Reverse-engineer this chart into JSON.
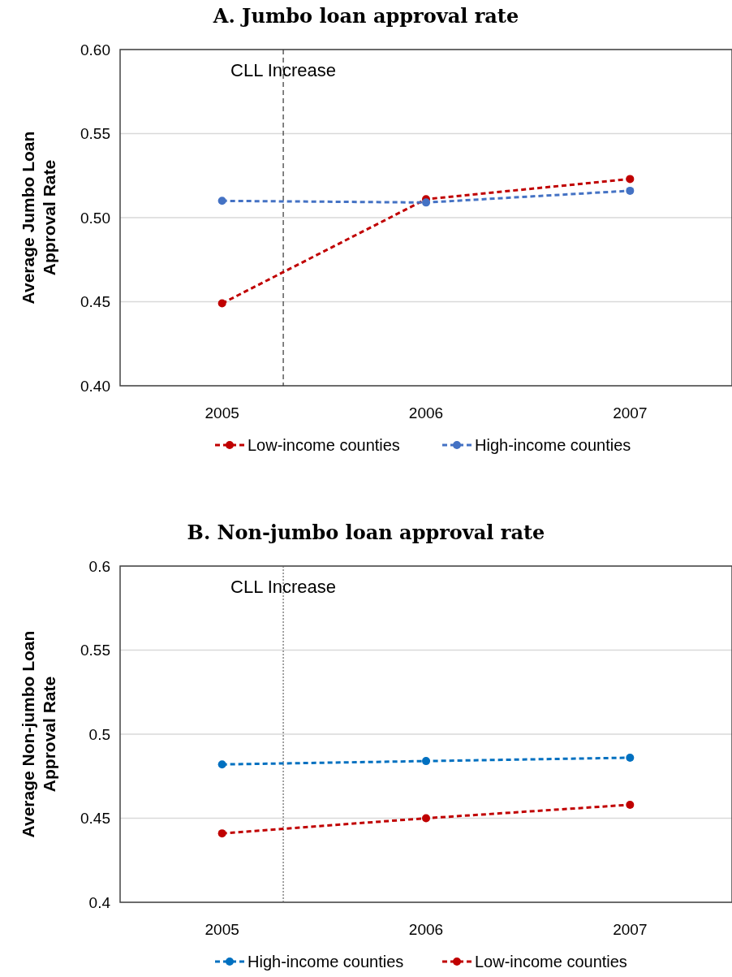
{
  "chart_data": [
    {
      "type": "line",
      "title": "A. Jumbo loan approval rate",
      "ylabel": "Average Jumbo Loan Approval Rate",
      "x": [
        2005,
        2006,
        2007
      ],
      "xlim": [
        2004.5,
        2007.5
      ],
      "xticks": [
        2005,
        2006,
        2007
      ],
      "ylim": [
        0.4,
        0.6
      ],
      "yticks": [
        {
          "value": 0.4,
          "label": "0.40"
        },
        0.45,
        {
          "value": 0.5,
          "label": "0.50"
        },
        0.55,
        {
          "value": 0.6,
          "label": "0.60"
        }
      ],
      "grid": "y",
      "legend": "bottom",
      "marker": "circle",
      "line_style": "dashed",
      "ref_lines": [
        {
          "axis": "x",
          "value": 2005.3,
          "label": "CLL Increase",
          "line_style": "dashed",
          "color": "#333333"
        }
      ],
      "series": [
        {
          "name": "Low-income counties",
          "color": "#c00000",
          "values": [
            0.449,
            0.511,
            0.523
          ]
        },
        {
          "name": "High-income counties",
          "color": "#4472c4",
          "values": [
            0.51,
            0.509,
            0.516
          ]
        }
      ]
    },
    {
      "type": "line",
      "title": "B. Non-jumbo loan approval rate",
      "ylabel": "Average Non-jumbo Loan Approval Rate",
      "x": [
        2005,
        2006,
        2007
      ],
      "xlim": [
        2004.5,
        2007.5
      ],
      "xticks": [
        2005,
        2006,
        2007
      ],
      "ylim": [
        0.4,
        0.6
      ],
      "yticks": [
        0.4,
        0.45,
        0.5,
        0.55,
        0.6
      ],
      "grid": "y",
      "legend": "bottom",
      "marker": "circle",
      "line_style": "dashed",
      "ref_lines": [
        {
          "axis": "x",
          "value": 2005.3,
          "label": "CLL Increase",
          "line_style": "dotted",
          "color": "#666666"
        }
      ],
      "series": [
        {
          "name": "High-income counties",
          "color": "#0070c0",
          "values": [
            0.482,
            0.484,
            0.486
          ]
        },
        {
          "name": "Low-income counties",
          "color": "#c00000",
          "values": [
            0.441,
            0.45,
            0.458
          ]
        }
      ]
    }
  ]
}
